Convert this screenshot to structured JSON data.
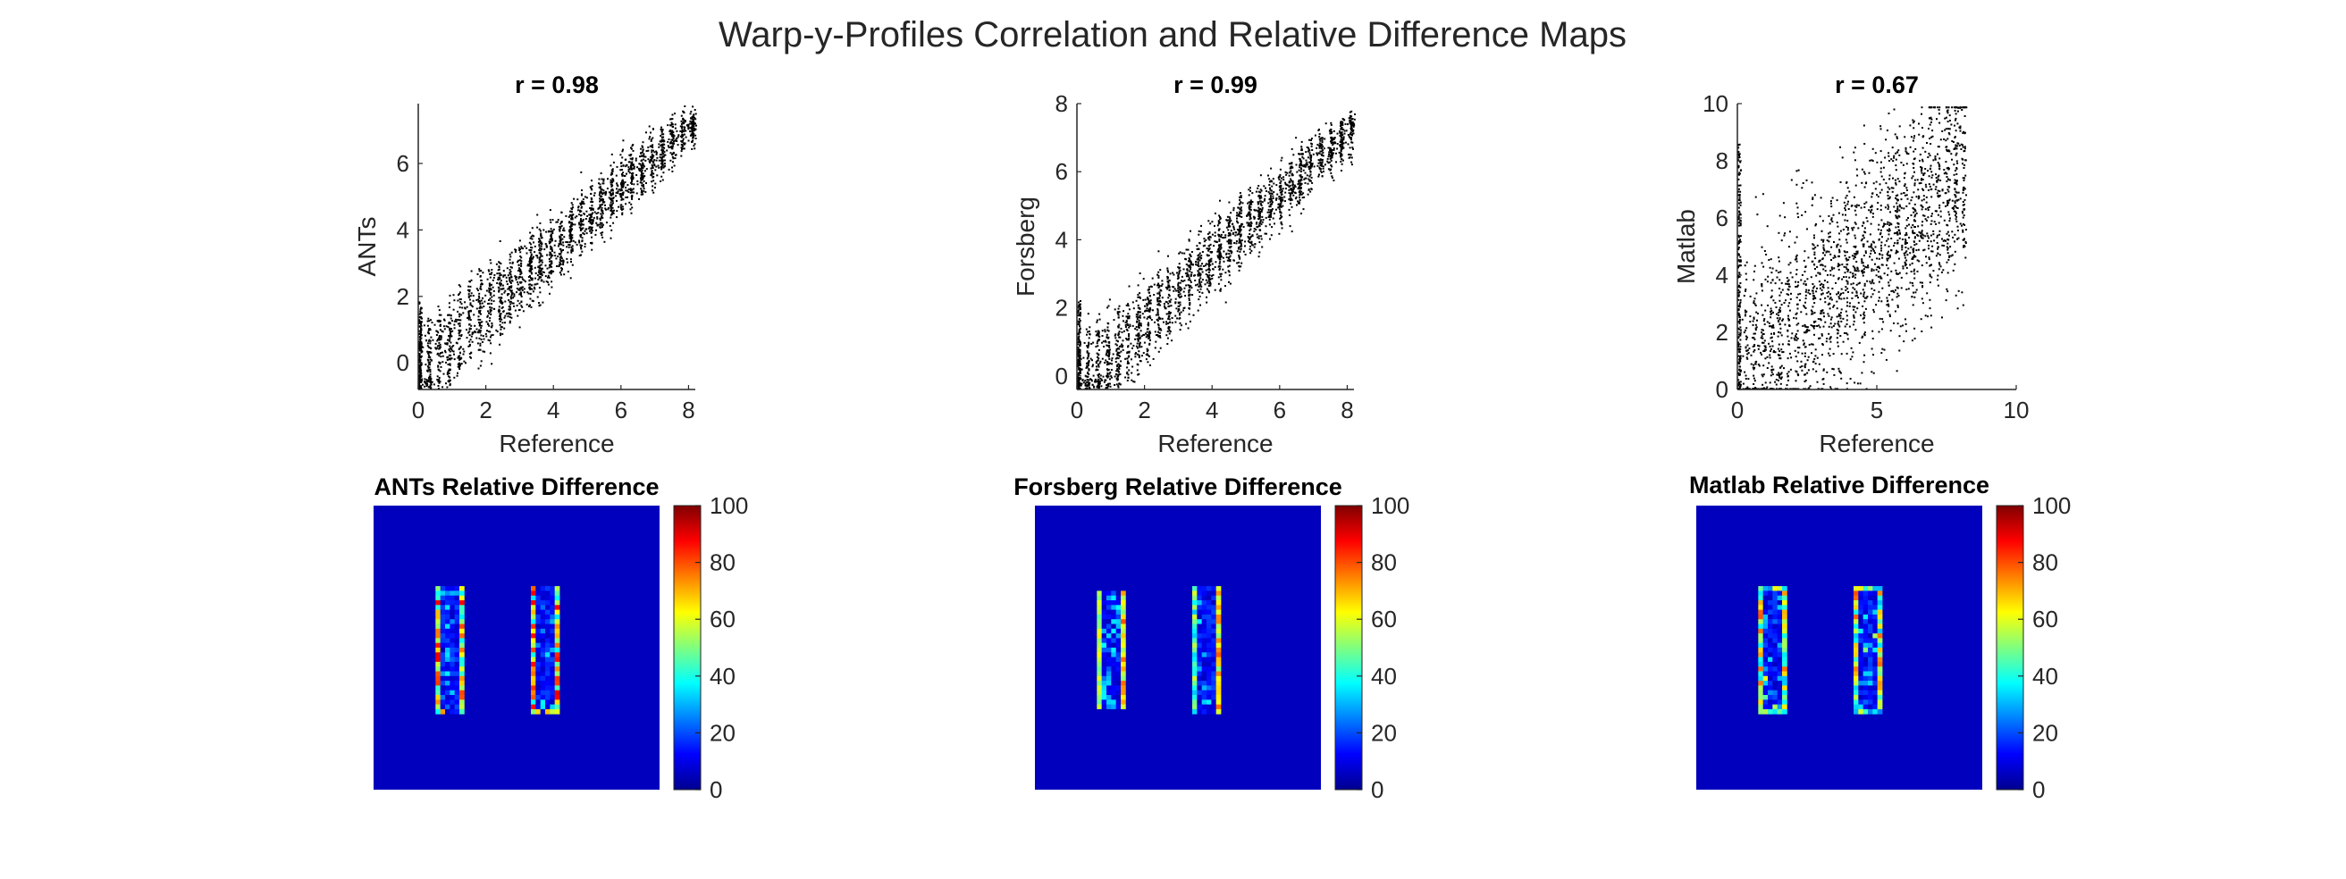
{
  "figure": {
    "title": "Warp-y-Profiles Correlation and Relative Difference Maps"
  },
  "chart_data": [
    {
      "type": "scatter",
      "title": "r = 0.98",
      "xlabel": "Reference",
      "ylabel": "ANTs",
      "xlim": [
        0,
        8.2
      ],
      "ylim": [
        -0.8,
        7.8
      ],
      "xticks": [
        0,
        2,
        4,
        6,
        8
      ],
      "yticks": [
        0,
        2,
        4,
        6
      ],
      "r": 0.98,
      "pattern": "banded-linear",
      "grid": false
    },
    {
      "type": "scatter",
      "title": "r = 0.99",
      "xlabel": "Reference",
      "ylabel": "Forsberg",
      "xlim": [
        0,
        8.2
      ],
      "ylim": [
        -0.4,
        8
      ],
      "xticks": [
        0,
        2,
        4,
        6,
        8
      ],
      "yticks": [
        0,
        2,
        4,
        6,
        8
      ],
      "r": 0.99,
      "pattern": "banded-linear",
      "grid": false
    },
    {
      "type": "scatter",
      "title": "r = 0.67",
      "xlabel": "Reference",
      "ylabel": "Matlab",
      "xlim": [
        0,
        10
      ],
      "ylim": [
        0,
        10
      ],
      "xticks": [
        0,
        5,
        10
      ],
      "yticks": [
        0,
        2,
        4,
        6,
        8,
        10
      ],
      "r": 0.67,
      "pattern": "diffuse",
      "grid": false
    },
    {
      "type": "heatmap",
      "title": "ANTs Relative Difference",
      "colorbar_ticks": [
        0,
        20,
        40,
        60,
        80,
        100
      ],
      "clim": [
        0,
        100
      ],
      "colormap": "jet",
      "style": "ants"
    },
    {
      "type": "heatmap",
      "title": "Forsberg Relative Difference",
      "colorbar_ticks": [
        0,
        20,
        40,
        60,
        80,
        100
      ],
      "clim": [
        0,
        100
      ],
      "colormap": "jet",
      "style": "forsberg"
    },
    {
      "type": "heatmap",
      "title": "Matlab Relative Difference",
      "colorbar_ticks": [
        0,
        20,
        40,
        60,
        80,
        100
      ],
      "clim": [
        0,
        100
      ],
      "colormap": "jet",
      "style": "matlab"
    }
  ]
}
